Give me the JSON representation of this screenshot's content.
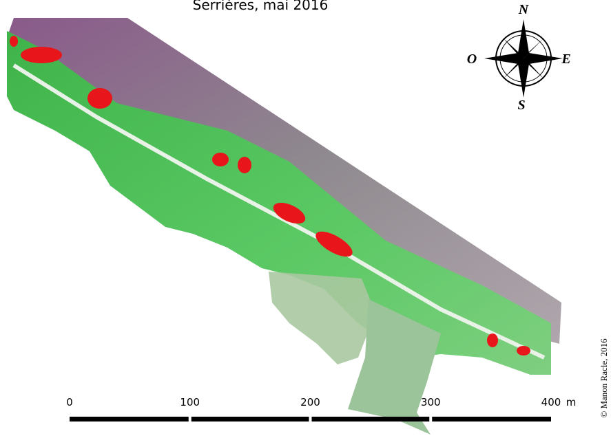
{
  "title": "Serrières, mai 2016",
  "compass": {
    "north": "N",
    "south": "S",
    "east": "E",
    "west": "O"
  },
  "scale_bar": {
    "ticks": [
      0,
      100,
      200,
      300,
      400
    ],
    "unit": "m"
  },
  "credit": "© Manon Racle, 2016"
}
